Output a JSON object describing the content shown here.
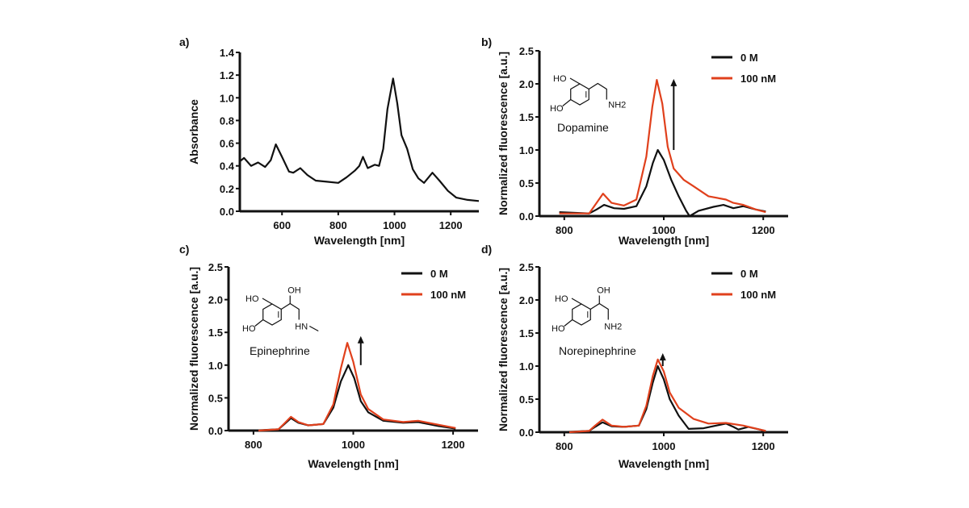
{
  "chart_data": [
    {
      "panel_label": "a)",
      "type": "line",
      "xlabel": "Wavelength [nm]",
      "ylabel": "Absorbance",
      "xlim": [
        450,
        1300
      ],
      "ylim": [
        0,
        1.4
      ],
      "xticks": [
        600,
        800,
        1000,
        1200
      ],
      "yticks": [
        "0.0",
        "0.2",
        "0.4",
        "0.6",
        "0.8",
        "1.0",
        "1.2",
        "1.4"
      ],
      "grid": false,
      "series": [
        {
          "color": "#111111",
          "x": [
            450,
            465,
            490,
            515,
            540,
            560,
            578,
            600,
            625,
            640,
            665,
            690,
            720,
            760,
            800,
            830,
            860,
            875,
            888,
            905,
            930,
            945,
            960,
            975,
            995,
            1010,
            1025,
            1045,
            1065,
            1085,
            1105,
            1135,
            1160,
            1190,
            1220,
            1260,
            1300
          ],
          "y": [
            0.44,
            0.47,
            0.4,
            0.43,
            0.39,
            0.45,
            0.59,
            0.48,
            0.35,
            0.34,
            0.38,
            0.32,
            0.27,
            0.26,
            0.25,
            0.3,
            0.36,
            0.4,
            0.48,
            0.38,
            0.41,
            0.4,
            0.55,
            0.9,
            1.17,
            0.95,
            0.67,
            0.55,
            0.37,
            0.29,
            0.25,
            0.34,
            0.27,
            0.18,
            0.12,
            0.1,
            0.09
          ]
        }
      ]
    },
    {
      "panel_label": "b)",
      "type": "line",
      "xlabel": "Wavelength [nm]",
      "ylabel": "Normalized fluorescence [a.u.]",
      "xlim": [
        750,
        1250
      ],
      "ylim": [
        0,
        2.5
      ],
      "xticks": [
        800,
        1000,
        1200
      ],
      "yticks": [
        "0.0",
        "0.5",
        "1.0",
        "1.5",
        "2.0",
        "2.5"
      ],
      "grid": false,
      "legend": "top-right",
      "molecule": {
        "name": "Dopamine",
        "labels": [
          "HO",
          "HO",
          "NH2"
        ]
      },
      "arrow": {
        "x": 1020,
        "from": 1.0,
        "to": 2.05
      },
      "series": [
        {
          "name": "0 M",
          "color": "#111111",
          "x": [
            790,
            850,
            865,
            880,
            900,
            920,
            945,
            965,
            978,
            988,
            1000,
            1015,
            1030,
            1045,
            1052,
            1070,
            1100,
            1120,
            1140,
            1160,
            1185,
            1205
          ],
          "y": [
            0.06,
            0.04,
            0.1,
            0.17,
            0.12,
            0.11,
            0.15,
            0.45,
            0.8,
            1.0,
            0.85,
            0.55,
            0.3,
            0.08,
            0.0,
            0.08,
            0.14,
            0.17,
            0.12,
            0.15,
            0.1,
            0.07
          ]
        },
        {
          "name": "100 nM",
          "color": "#e0401c",
          "x": [
            790,
            850,
            865,
            878,
            895,
            920,
            945,
            965,
            977,
            986,
            997,
            1008,
            1020,
            1040,
            1060,
            1090,
            1125,
            1140,
            1160,
            1185,
            1205
          ],
          "y": [
            0.04,
            0.04,
            0.2,
            0.34,
            0.2,
            0.16,
            0.25,
            0.9,
            1.65,
            2.06,
            1.7,
            1.05,
            0.72,
            0.55,
            0.45,
            0.3,
            0.25,
            0.2,
            0.17,
            0.1,
            0.06
          ]
        }
      ]
    },
    {
      "panel_label": "c)",
      "type": "line",
      "xlabel": "Wavelength [nm]",
      "ylabel": "Normalized fluorescence [a.u.]",
      "xlim": [
        750,
        1250
      ],
      "ylim": [
        0,
        2.5
      ],
      "xticks": [
        800,
        1000,
        1200
      ],
      "yticks": [
        "0.0",
        "0.5",
        "1.0",
        "1.5",
        "2.0",
        "2.5"
      ],
      "grid": false,
      "legend": "top-right",
      "molecule": {
        "name": "Epinephrine",
        "labels": [
          "HO",
          "HO",
          "OH",
          "HN"
        ]
      },
      "arrow": {
        "x": 1015,
        "from": 1.0,
        "to": 1.42
      },
      "series": [
        {
          "name": "0 M",
          "color": "#111111",
          "x": [
            800,
            850,
            862,
            875,
            890,
            910,
            940,
            960,
            975,
            990,
            1002,
            1015,
            1030,
            1060,
            1100,
            1130,
            1170,
            1205
          ],
          "y": [
            0.0,
            0.02,
            0.1,
            0.19,
            0.12,
            0.08,
            0.1,
            0.35,
            0.75,
            1.0,
            0.8,
            0.45,
            0.28,
            0.15,
            0.12,
            0.13,
            0.07,
            0.03
          ]
        },
        {
          "name": "100 nM",
          "color": "#e0401c",
          "x": [
            810,
            850,
            862,
            875,
            890,
            910,
            940,
            960,
            975,
            988,
            1000,
            1015,
            1030,
            1060,
            1100,
            1130,
            1170,
            1205
          ],
          "y": [
            0.0,
            0.02,
            0.11,
            0.21,
            0.13,
            0.08,
            0.1,
            0.4,
            0.95,
            1.34,
            1.05,
            0.55,
            0.33,
            0.17,
            0.13,
            0.15,
            0.09,
            0.04
          ]
        }
      ]
    },
    {
      "panel_label": "d)",
      "type": "line",
      "xlabel": "Wavelength [nm]",
      "ylabel": "Normalized fluorescence [a.u.]",
      "xlim": [
        750,
        1250
      ],
      "ylim": [
        0,
        2.5
      ],
      "xticks": [
        800,
        1000,
        1200
      ],
      "yticks": [
        "0.0",
        "0.5",
        "1.0",
        "1.5",
        "2.0",
        "2.5"
      ],
      "grid": false,
      "legend": "top-right",
      "molecule": {
        "name": "Norepinephrine",
        "labels": [
          "HO",
          "HO",
          "OH",
          "NH2"
        ]
      },
      "arrow": {
        "x": 998,
        "from": 1.0,
        "to": 1.17
      },
      "series": [
        {
          "name": "0 M",
          "color": "#111111",
          "x": [
            795,
            850,
            862,
            877,
            895,
            920,
            950,
            965,
            978,
            988,
            1000,
            1012,
            1030,
            1050,
            1080,
            1125,
            1140,
            1150,
            1170,
            1205
          ],
          "y": [
            0.0,
            0.02,
            0.08,
            0.15,
            0.09,
            0.08,
            0.1,
            0.35,
            0.75,
            1.0,
            0.8,
            0.5,
            0.25,
            0.05,
            0.06,
            0.13,
            0.08,
            0.04,
            0.08,
            0.02
          ]
        },
        {
          "name": "100 nM",
          "color": "#e0401c",
          "x": [
            810,
            850,
            862,
            877,
            895,
            920,
            950,
            965,
            978,
            988,
            1000,
            1012,
            1030,
            1060,
            1090,
            1125,
            1160,
            1205
          ],
          "y": [
            0.0,
            0.02,
            0.1,
            0.19,
            0.1,
            0.08,
            0.1,
            0.4,
            0.85,
            1.1,
            0.92,
            0.6,
            0.37,
            0.2,
            0.13,
            0.14,
            0.1,
            0.02
          ]
        }
      ]
    }
  ]
}
